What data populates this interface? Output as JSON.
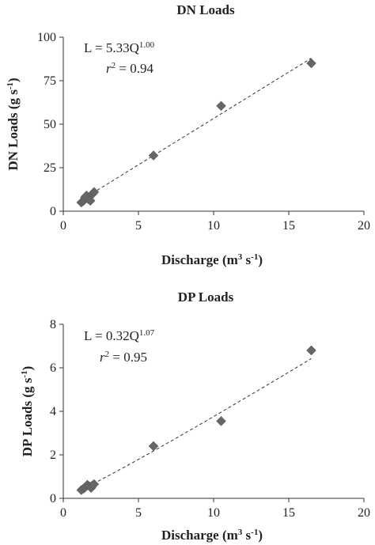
{
  "chart_data": [
    {
      "type": "scatter",
      "title": "DN Loads",
      "xlabel": {
        "base": "Discharge (m",
        "sup1": "3",
        "mid": " s",
        "sup2": "-1",
        "end": ")"
      },
      "ylabel": {
        "base": "DN Loads (g s",
        "sup": "-1",
        "end": ")"
      },
      "xlim": [
        0,
        20
      ],
      "ylim": [
        0,
        100
      ],
      "xticks": [
        "0",
        "5",
        "10",
        "15",
        "20"
      ],
      "yticks": [
        "0",
        "25",
        "50",
        "75",
        "100"
      ],
      "equation": {
        "lhs": "L = 5.33Q",
        "exp": "1.00"
      },
      "r2": {
        "r": "r",
        "sup": "2",
        "rest": " = 0.94"
      },
      "fit": {
        "a": 5.33,
        "b": 1.0,
        "x_range": [
          1.0,
          16.5
        ]
      },
      "points": [
        {
          "x": 1.2,
          "y": 5
        },
        {
          "x": 1.35,
          "y": 6
        },
        {
          "x": 1.45,
          "y": 8
        },
        {
          "x": 1.55,
          "y": 9
        },
        {
          "x": 1.65,
          "y": 7
        },
        {
          "x": 1.8,
          "y": 6
        },
        {
          "x": 1.95,
          "y": 10
        },
        {
          "x": 2.05,
          "y": 11
        },
        {
          "x": 6,
          "y": 32
        },
        {
          "x": 10.5,
          "y": 60.5
        },
        {
          "x": 16.5,
          "y": 85
        }
      ]
    },
    {
      "type": "scatter",
      "title": "DP Loads",
      "xlabel": {
        "base": "Discharge (m",
        "sup1": "3",
        "mid": " s",
        "sup2": "-1",
        "end": ")"
      },
      "ylabel": {
        "base": "DP Loads (g s",
        "sup": "-1",
        "end": ")"
      },
      "xlim": [
        0,
        20
      ],
      "ylim": [
        0,
        8
      ],
      "xticks": [
        "0",
        "5",
        "10",
        "15",
        "20"
      ],
      "yticks": [
        "0",
        "2",
        "4",
        "6",
        "8"
      ],
      "equation": {
        "lhs": "L = 0.32Q",
        "exp": "1.07"
      },
      "r2": {
        "r": "r",
        "sup": "2",
        "rest": " = 0.95"
      },
      "fit": {
        "a": 0.32,
        "b": 1.07,
        "x_range": [
          1.0,
          16.5
        ]
      },
      "points": [
        {
          "x": 1.2,
          "y": 0.38
        },
        {
          "x": 1.35,
          "y": 0.45
        },
        {
          "x": 1.45,
          "y": 0.5
        },
        {
          "x": 1.6,
          "y": 0.62
        },
        {
          "x": 1.75,
          "y": 0.55
        },
        {
          "x": 1.85,
          "y": 0.48
        },
        {
          "x": 1.95,
          "y": 0.6
        },
        {
          "x": 2.05,
          "y": 0.65
        },
        {
          "x": 6,
          "y": 2.4
        },
        {
          "x": 10.5,
          "y": 3.55
        },
        {
          "x": 16.5,
          "y": 6.8
        }
      ]
    }
  ]
}
